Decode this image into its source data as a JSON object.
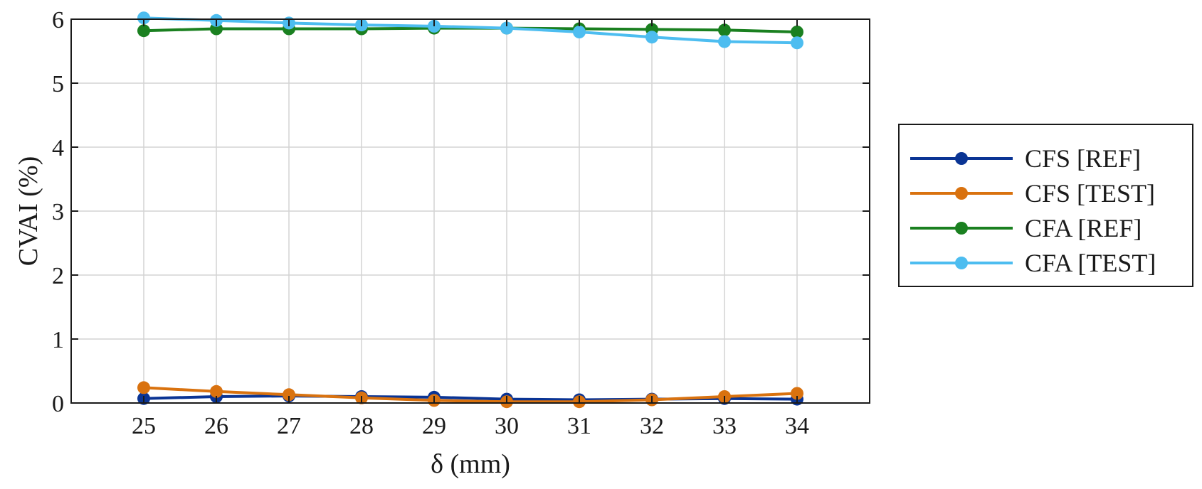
{
  "chart_data": {
    "type": "line",
    "xlabel": "δ (mm)",
    "ylabel": "CVAI (%)",
    "x": [
      25,
      26,
      27,
      28,
      29,
      30,
      31,
      32,
      33,
      34
    ],
    "xlim": [
      24,
      35
    ],
    "ylim": [
      0,
      6
    ],
    "xticks": [
      25,
      26,
      27,
      28,
      29,
      30,
      31,
      32,
      33,
      34
    ],
    "yticks": [
      0,
      1,
      2,
      3,
      4,
      5,
      6
    ],
    "grid": true,
    "legend_position": "right-outside",
    "series": [
      {
        "name": "CFS [REF]",
        "color": "#0a3494",
        "values": [
          0.07,
          0.1,
          0.11,
          0.1,
          0.09,
          0.06,
          0.05,
          0.06,
          0.07,
          0.06
        ]
      },
      {
        "name": "CFS [TEST]",
        "color": "#d9720f",
        "values": [
          0.24,
          0.18,
          0.13,
          0.08,
          0.04,
          0.02,
          0.02,
          0.05,
          0.1,
          0.15
        ]
      },
      {
        "name": "CFA [REF]",
        "color": "#1a8020",
        "values": [
          5.82,
          5.85,
          5.85,
          5.85,
          5.86,
          5.86,
          5.85,
          5.84,
          5.83,
          5.8
        ]
      },
      {
        "name": "CFA [TEST]",
        "color": "#4dbdf0",
        "values": [
          6.02,
          5.98,
          5.94,
          5.91,
          5.89,
          5.86,
          5.8,
          5.72,
          5.65,
          5.63
        ]
      }
    ]
  }
}
